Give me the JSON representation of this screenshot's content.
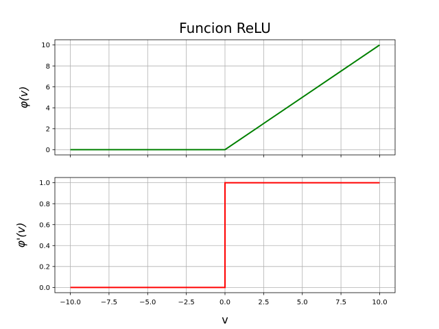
{
  "chart_data": [
    {
      "type": "line",
      "title": "Funcion ReLU",
      "xlabel": "",
      "ylabel": "φ(v)",
      "xlim": [
        -11,
        11
      ],
      "ylim": [
        -0.5,
        10.5
      ],
      "xticks": [
        -10.0,
        -7.5,
        -5.0,
        -2.5,
        0.0,
        2.5,
        5.0,
        7.5,
        10.0
      ],
      "xtick_labels": [],
      "yticks": [
        0,
        2,
        4,
        6,
        8,
        10
      ],
      "ytick_labels": [
        "0",
        "2",
        "4",
        "6",
        "8",
        "10"
      ],
      "grid": true,
      "series": [
        {
          "color": "#008000",
          "x": [
            -10,
            0,
            10
          ],
          "y": [
            0,
            0,
            10
          ]
        }
      ]
    },
    {
      "type": "line",
      "title": "",
      "xlabel": "v",
      "ylabel": "φ'(v)",
      "xlim": [
        -11,
        11
      ],
      "ylim": [
        -0.05,
        1.05
      ],
      "xticks": [
        -10.0,
        -7.5,
        -5.0,
        -2.5,
        0.0,
        2.5,
        5.0,
        7.5,
        10.0
      ],
      "xtick_labels": [
        "−10.0",
        "−7.5",
        "−5.0",
        "−2.5",
        "0.0",
        "2.5",
        "5.0",
        "7.5",
        "10.0"
      ],
      "yticks": [
        0.0,
        0.2,
        0.4,
        0.6,
        0.8,
        1.0
      ],
      "ytick_labels": [
        "0.0",
        "0.2",
        "0.4",
        "0.6",
        "0.8",
        "1.0"
      ],
      "grid": true,
      "series": [
        {
          "color": "#ff0000",
          "x": [
            -10,
            0,
            0,
            10
          ],
          "y": [
            0,
            0,
            1,
            1
          ]
        }
      ]
    }
  ]
}
